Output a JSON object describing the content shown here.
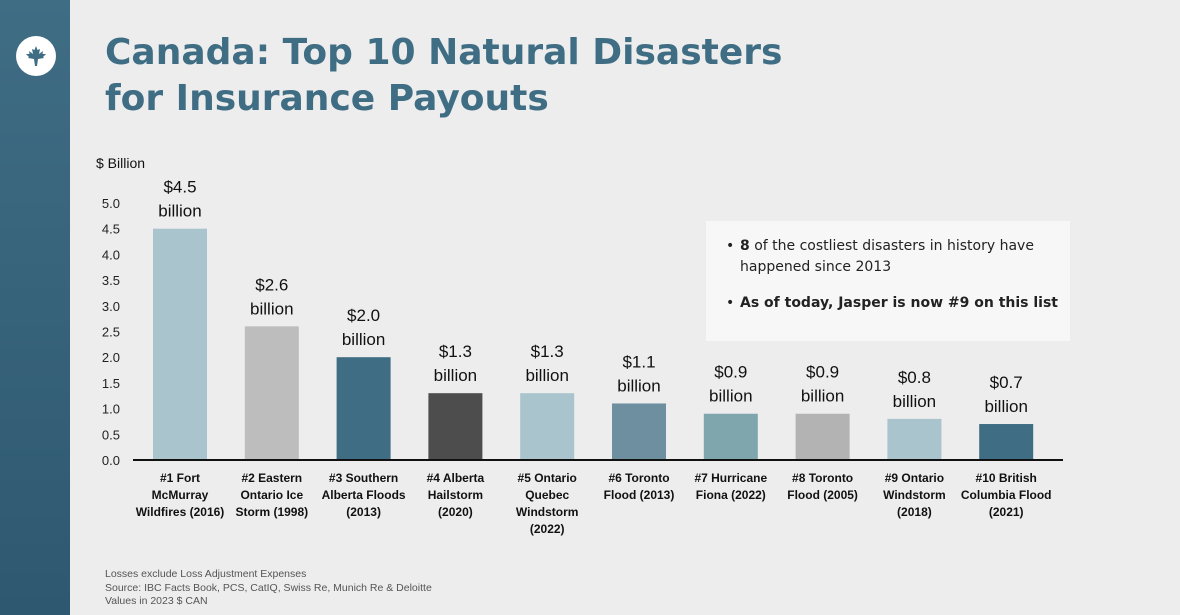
{
  "slide": {
    "title_line1": "Canada: Top 10 Natural Disasters",
    "title_line2": "for Insurance Payouts"
  },
  "logo": {
    "icon": "maple-leaf-icon"
  },
  "chart_data": {
    "type": "bar",
    "ylabel": "$ Billion",
    "ylim": [
      0,
      5.0
    ],
    "yticks": [
      "0.0",
      "0.5",
      "1.0",
      "1.5",
      "2.0",
      "2.5",
      "3.0",
      "3.5",
      "4.0",
      "4.5",
      "5.0"
    ],
    "grid": false,
    "categories": [
      [
        "#1 Fort",
        "McMurray",
        "Wildfires (2016)"
      ],
      [
        "#2 Eastern",
        "Ontario Ice",
        "Storm (1998)"
      ],
      [
        "#3 Southern",
        "Alberta Floods",
        "(2013)"
      ],
      [
        "#4 Alberta",
        "Hailstorm",
        "(2020)"
      ],
      [
        "#5 Ontario",
        "Quebec",
        "Windstorm",
        "(2022)"
      ],
      [
        "#6 Toronto",
        "Flood (2013)"
      ],
      [
        "#7 Hurricane",
        "Fiona (2022)"
      ],
      [
        "#8 Toronto",
        "Flood (2005)"
      ],
      [
        "#9 Ontario",
        "Windstorm",
        "(2018)"
      ],
      [
        "#10 British",
        "Columbia Flood",
        "(2021)"
      ]
    ],
    "values": [
      4.5,
      2.6,
      2.0,
      1.3,
      1.3,
      1.1,
      0.9,
      0.9,
      0.8,
      0.7
    ],
    "data_labels": [
      [
        "$4.5",
        "billion"
      ],
      [
        "$2.6",
        "billion"
      ],
      [
        "$2.0",
        "billion"
      ],
      [
        "$1.3",
        "billion"
      ],
      [
        "$1.3",
        "billion"
      ],
      [
        "$1.1",
        "billion"
      ],
      [
        "$0.9",
        "billion"
      ],
      [
        "$0.9",
        "billion"
      ],
      [
        "$0.8",
        "billion"
      ],
      [
        "$0.7",
        "billion"
      ]
    ],
    "colors": [
      "#a9c4cc",
      "#bdbdbd",
      "#3f6d84",
      "#4d4d4d",
      "#a9c4cc",
      "#6e8fa0",
      "#7fa6ac",
      "#b3b3b3",
      "#a9c4cc",
      "#3f6d84"
    ]
  },
  "notes": {
    "bullet1_bold": "8",
    "bullet1_text": " of the costliest disasters in history have happened since 2013",
    "bullet2": "As of today, Jasper is now #9 on this list"
  },
  "footer": {
    "line1": "Losses exclude Loss Adjustment Expenses",
    "line2": "Source: IBC  Facts Book, PCS,  CatIQ, Swiss Re, Munich Re & Deloitte",
    "line3": "Values in 2023 $ CAN"
  }
}
